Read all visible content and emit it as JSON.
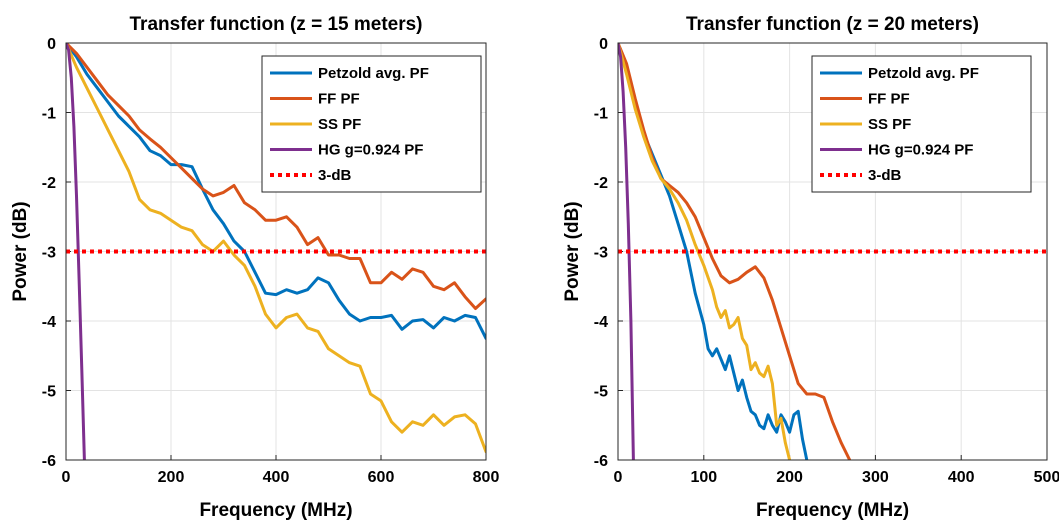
{
  "chart_data": [
    {
      "type": "line",
      "title": "Transfer function  (z = 15 meters)",
      "xlabel": "Frequency (MHz)",
      "ylabel": "Power (dB)",
      "xlim": [
        0,
        800
      ],
      "ylim": [
        -6,
        0
      ],
      "xticks": [
        "0",
        "200",
        "400",
        "600",
        "800"
      ],
      "yticks": [
        "0",
        "-1",
        "-2",
        "-3",
        "-4",
        "-5",
        "-6"
      ],
      "grid": true,
      "legend_position": "top-right",
      "series": [
        {
          "name": "Petzold avg. PF",
          "color": "#0072BD",
          "style": "solid",
          "points": [
            [
              0,
              0
            ],
            [
              20,
              -0.2
            ],
            [
              40,
              -0.45
            ],
            [
              60,
              -0.65
            ],
            [
              80,
              -0.85
            ],
            [
              100,
              -1.05
            ],
            [
              120,
              -1.2
            ],
            [
              140,
              -1.35
            ],
            [
              160,
              -1.55
            ],
            [
              180,
              -1.62
            ],
            [
              200,
              -1.75
            ],
            [
              220,
              -1.75
            ],
            [
              240,
              -1.78
            ],
            [
              260,
              -2.1
            ],
            [
              280,
              -2.4
            ],
            [
              300,
              -2.6
            ],
            [
              320,
              -2.85
            ],
            [
              340,
              -3.0
            ],
            [
              360,
              -3.3
            ],
            [
              380,
              -3.6
            ],
            [
              400,
              -3.62
            ],
            [
              420,
              -3.55
            ],
            [
              440,
              -3.6
            ],
            [
              460,
              -3.55
            ],
            [
              480,
              -3.38
            ],
            [
              500,
              -3.45
            ],
            [
              520,
              -3.7
            ],
            [
              540,
              -3.9
            ],
            [
              560,
              -4.0
            ],
            [
              580,
              -3.95
            ],
            [
              600,
              -3.95
            ],
            [
              620,
              -3.92
            ],
            [
              640,
              -4.12
            ],
            [
              660,
              -4.0
            ],
            [
              680,
              -3.98
            ],
            [
              700,
              -4.1
            ],
            [
              720,
              -3.95
            ],
            [
              740,
              -4.0
            ],
            [
              760,
              -3.92
            ],
            [
              780,
              -3.95
            ],
            [
              800,
              -4.25
            ]
          ]
        },
        {
          "name": "FF PF",
          "color": "#D95319",
          "style": "solid",
          "points": [
            [
              0,
              0
            ],
            [
              20,
              -0.15
            ],
            [
              40,
              -0.35
            ],
            [
              60,
              -0.55
            ],
            [
              80,
              -0.75
            ],
            [
              100,
              -0.9
            ],
            [
              120,
              -1.05
            ],
            [
              140,
              -1.25
            ],
            [
              160,
              -1.38
            ],
            [
              180,
              -1.5
            ],
            [
              200,
              -1.65
            ],
            [
              220,
              -1.8
            ],
            [
              240,
              -1.95
            ],
            [
              260,
              -2.1
            ],
            [
              280,
              -2.2
            ],
            [
              300,
              -2.15
            ],
            [
              320,
              -2.05
            ],
            [
              340,
              -2.3
            ],
            [
              360,
              -2.4
            ],
            [
              380,
              -2.55
            ],
            [
              400,
              -2.55
            ],
            [
              420,
              -2.5
            ],
            [
              440,
              -2.65
            ],
            [
              460,
              -2.9
            ],
            [
              480,
              -2.8
            ],
            [
              500,
              -3.05
            ],
            [
              520,
              -3.05
            ],
            [
              540,
              -3.1
            ],
            [
              560,
              -3.1
            ],
            [
              580,
              -3.45
            ],
            [
              600,
              -3.45
            ],
            [
              620,
              -3.3
            ],
            [
              640,
              -3.4
            ],
            [
              660,
              -3.25
            ],
            [
              680,
              -3.3
            ],
            [
              700,
              -3.5
            ],
            [
              720,
              -3.55
            ],
            [
              740,
              -3.45
            ],
            [
              760,
              -3.65
            ],
            [
              780,
              -3.82
            ],
            [
              800,
              -3.68
            ]
          ]
        },
        {
          "name": "SS PF",
          "color": "#EDB120",
          "style": "solid",
          "points": [
            [
              0,
              0
            ],
            [
              20,
              -0.35
            ],
            [
              40,
              -0.65
            ],
            [
              60,
              -0.95
            ],
            [
              80,
              -1.25
            ],
            [
              100,
              -1.55
            ],
            [
              120,
              -1.85
            ],
            [
              140,
              -2.25
            ],
            [
              160,
              -2.4
            ],
            [
              180,
              -2.45
            ],
            [
              200,
              -2.55
            ],
            [
              220,
              -2.65
            ],
            [
              240,
              -2.7
            ],
            [
              260,
              -2.9
            ],
            [
              280,
              -3.0
            ],
            [
              300,
              -2.85
            ],
            [
              320,
              -3.05
            ],
            [
              340,
              -3.2
            ],
            [
              360,
              -3.5
            ],
            [
              380,
              -3.9
            ],
            [
              400,
              -4.1
            ],
            [
              420,
              -3.95
            ],
            [
              440,
              -3.9
            ],
            [
              460,
              -4.1
            ],
            [
              480,
              -4.15
            ],
            [
              500,
              -4.4
            ],
            [
              520,
              -4.5
            ],
            [
              540,
              -4.6
            ],
            [
              560,
              -4.65
            ],
            [
              580,
              -5.05
            ],
            [
              600,
              -5.15
            ],
            [
              620,
              -5.45
            ],
            [
              640,
              -5.6
            ],
            [
              660,
              -5.45
            ],
            [
              680,
              -5.5
            ],
            [
              700,
              -5.35
            ],
            [
              720,
              -5.5
            ],
            [
              740,
              -5.38
            ],
            [
              760,
              -5.35
            ],
            [
              780,
              -5.48
            ],
            [
              800,
              -5.88
            ]
          ]
        },
        {
          "name": "HG g=0.924 PF",
          "color": "#7E2F8E",
          "style": "solid",
          "points": [
            [
              0,
              0
            ],
            [
              5,
              -0.1
            ],
            [
              10,
              -0.5
            ],
            [
              15,
              -1.2
            ],
            [
              20,
              -2.2
            ],
            [
              25,
              -3.4
            ],
            [
              30,
              -4.7
            ],
            [
              35,
              -6.0
            ]
          ]
        },
        {
          "name": "3-dB",
          "color": "#FF0000",
          "style": "dotted",
          "points": [
            [
              0,
              -3
            ],
            [
              800,
              -3
            ]
          ]
        }
      ]
    },
    {
      "type": "line",
      "title": "Transfer function  (z = 20 meters)",
      "xlabel": "Frequency (MHz)",
      "ylabel": "Power (dB)",
      "xlim": [
        0,
        500
      ],
      "ylim": [
        -6,
        0
      ],
      "xticks": [
        "0",
        "100",
        "200",
        "300",
        "400",
        "500"
      ],
      "yticks": [
        "0",
        "-1",
        "-2",
        "-3",
        "-4",
        "-5",
        "-6"
      ],
      "grid": true,
      "legend_position": "top-right",
      "series": [
        {
          "name": "Petzold avg. PF",
          "color": "#0072BD",
          "style": "solid",
          "points": [
            [
              0,
              0
            ],
            [
              10,
              -0.4
            ],
            [
              20,
              -0.85
            ],
            [
              30,
              -1.3
            ],
            [
              40,
              -1.6
            ],
            [
              50,
              -1.9
            ],
            [
              60,
              -2.2
            ],
            [
              70,
              -2.6
            ],
            [
              80,
              -3.0
            ],
            [
              90,
              -3.6
            ],
            [
              100,
              -4.05
            ],
            [
              105,
              -4.4
            ],
            [
              110,
              -4.5
            ],
            [
              115,
              -4.4
            ],
            [
              120,
              -4.55
            ],
            [
              125,
              -4.7
            ],
            [
              130,
              -4.5
            ],
            [
              135,
              -4.75
            ],
            [
              140,
              -5.0
            ],
            [
              145,
              -4.85
            ],
            [
              150,
              -5.1
            ],
            [
              155,
              -5.3
            ],
            [
              160,
              -5.35
            ],
            [
              165,
              -5.5
            ],
            [
              170,
              -5.55
            ],
            [
              175,
              -5.35
            ],
            [
              180,
              -5.5
            ],
            [
              185,
              -5.6
            ],
            [
              190,
              -5.35
            ],
            [
              195,
              -5.45
            ],
            [
              200,
              -5.6
            ],
            [
              205,
              -5.35
            ],
            [
              210,
              -5.3
            ],
            [
              215,
              -5.7
            ],
            [
              220,
              -6.0
            ]
          ]
        },
        {
          "name": "FF PF",
          "color": "#D95319",
          "style": "solid",
          "points": [
            [
              0,
              0
            ],
            [
              10,
              -0.3
            ],
            [
              20,
              -0.8
            ],
            [
              30,
              -1.25
            ],
            [
              40,
              -1.65
            ],
            [
              50,
              -1.95
            ],
            [
              60,
              -2.05
            ],
            [
              70,
              -2.15
            ],
            [
              80,
              -2.3
            ],
            [
              90,
              -2.5
            ],
            [
              100,
              -2.8
            ],
            [
              110,
              -3.1
            ],
            [
              120,
              -3.35
            ],
            [
              130,
              -3.45
            ],
            [
              140,
              -3.4
            ],
            [
              150,
              -3.3
            ],
            [
              160,
              -3.22
            ],
            [
              170,
              -3.38
            ],
            [
              180,
              -3.7
            ],
            [
              190,
              -4.1
            ],
            [
              200,
              -4.5
            ],
            [
              210,
              -4.9
            ],
            [
              220,
              -5.05
            ],
            [
              230,
              -5.05
            ],
            [
              240,
              -5.1
            ],
            [
              250,
              -5.45
            ],
            [
              260,
              -5.75
            ],
            [
              270,
              -6.0
            ]
          ]
        },
        {
          "name": "SS PF",
          "color": "#EDB120",
          "style": "solid",
          "points": [
            [
              0,
              0
            ],
            [
              10,
              -0.45
            ],
            [
              20,
              -0.95
            ],
            [
              30,
              -1.35
            ],
            [
              40,
              -1.7
            ],
            [
              50,
              -1.95
            ],
            [
              60,
              -2.1
            ],
            [
              70,
              -2.3
            ],
            [
              80,
              -2.55
            ],
            [
              90,
              -2.9
            ],
            [
              100,
              -3.2
            ],
            [
              110,
              -3.55
            ],
            [
              115,
              -3.8
            ],
            [
              120,
              -3.95
            ],
            [
              125,
              -3.85
            ],
            [
              130,
              -4.1
            ],
            [
              135,
              -4.05
            ],
            [
              140,
              -3.95
            ],
            [
              145,
              -4.25
            ],
            [
              150,
              -4.35
            ],
            [
              155,
              -4.7
            ],
            [
              160,
              -4.6
            ],
            [
              165,
              -4.75
            ],
            [
              170,
              -4.8
            ],
            [
              175,
              -4.65
            ],
            [
              180,
              -4.9
            ],
            [
              185,
              -5.5
            ],
            [
              190,
              -5.4
            ],
            [
              195,
              -5.75
            ],
            [
              200,
              -6.0
            ]
          ]
        },
        {
          "name": "HG g=0.924 PF",
          "color": "#7E2F8E",
          "style": "solid",
          "points": [
            [
              0,
              0
            ],
            [
              3,
              -0.2
            ],
            [
              6,
              -0.7
            ],
            [
              9,
              -1.5
            ],
            [
              12,
              -2.6
            ],
            [
              15,
              -4.0
            ],
            [
              18,
              -6.0
            ]
          ]
        },
        {
          "name": "3-dB",
          "color": "#FF0000",
          "style": "dotted",
          "points": [
            [
              0,
              -3
            ],
            [
              500,
              -3
            ]
          ]
        }
      ]
    }
  ]
}
